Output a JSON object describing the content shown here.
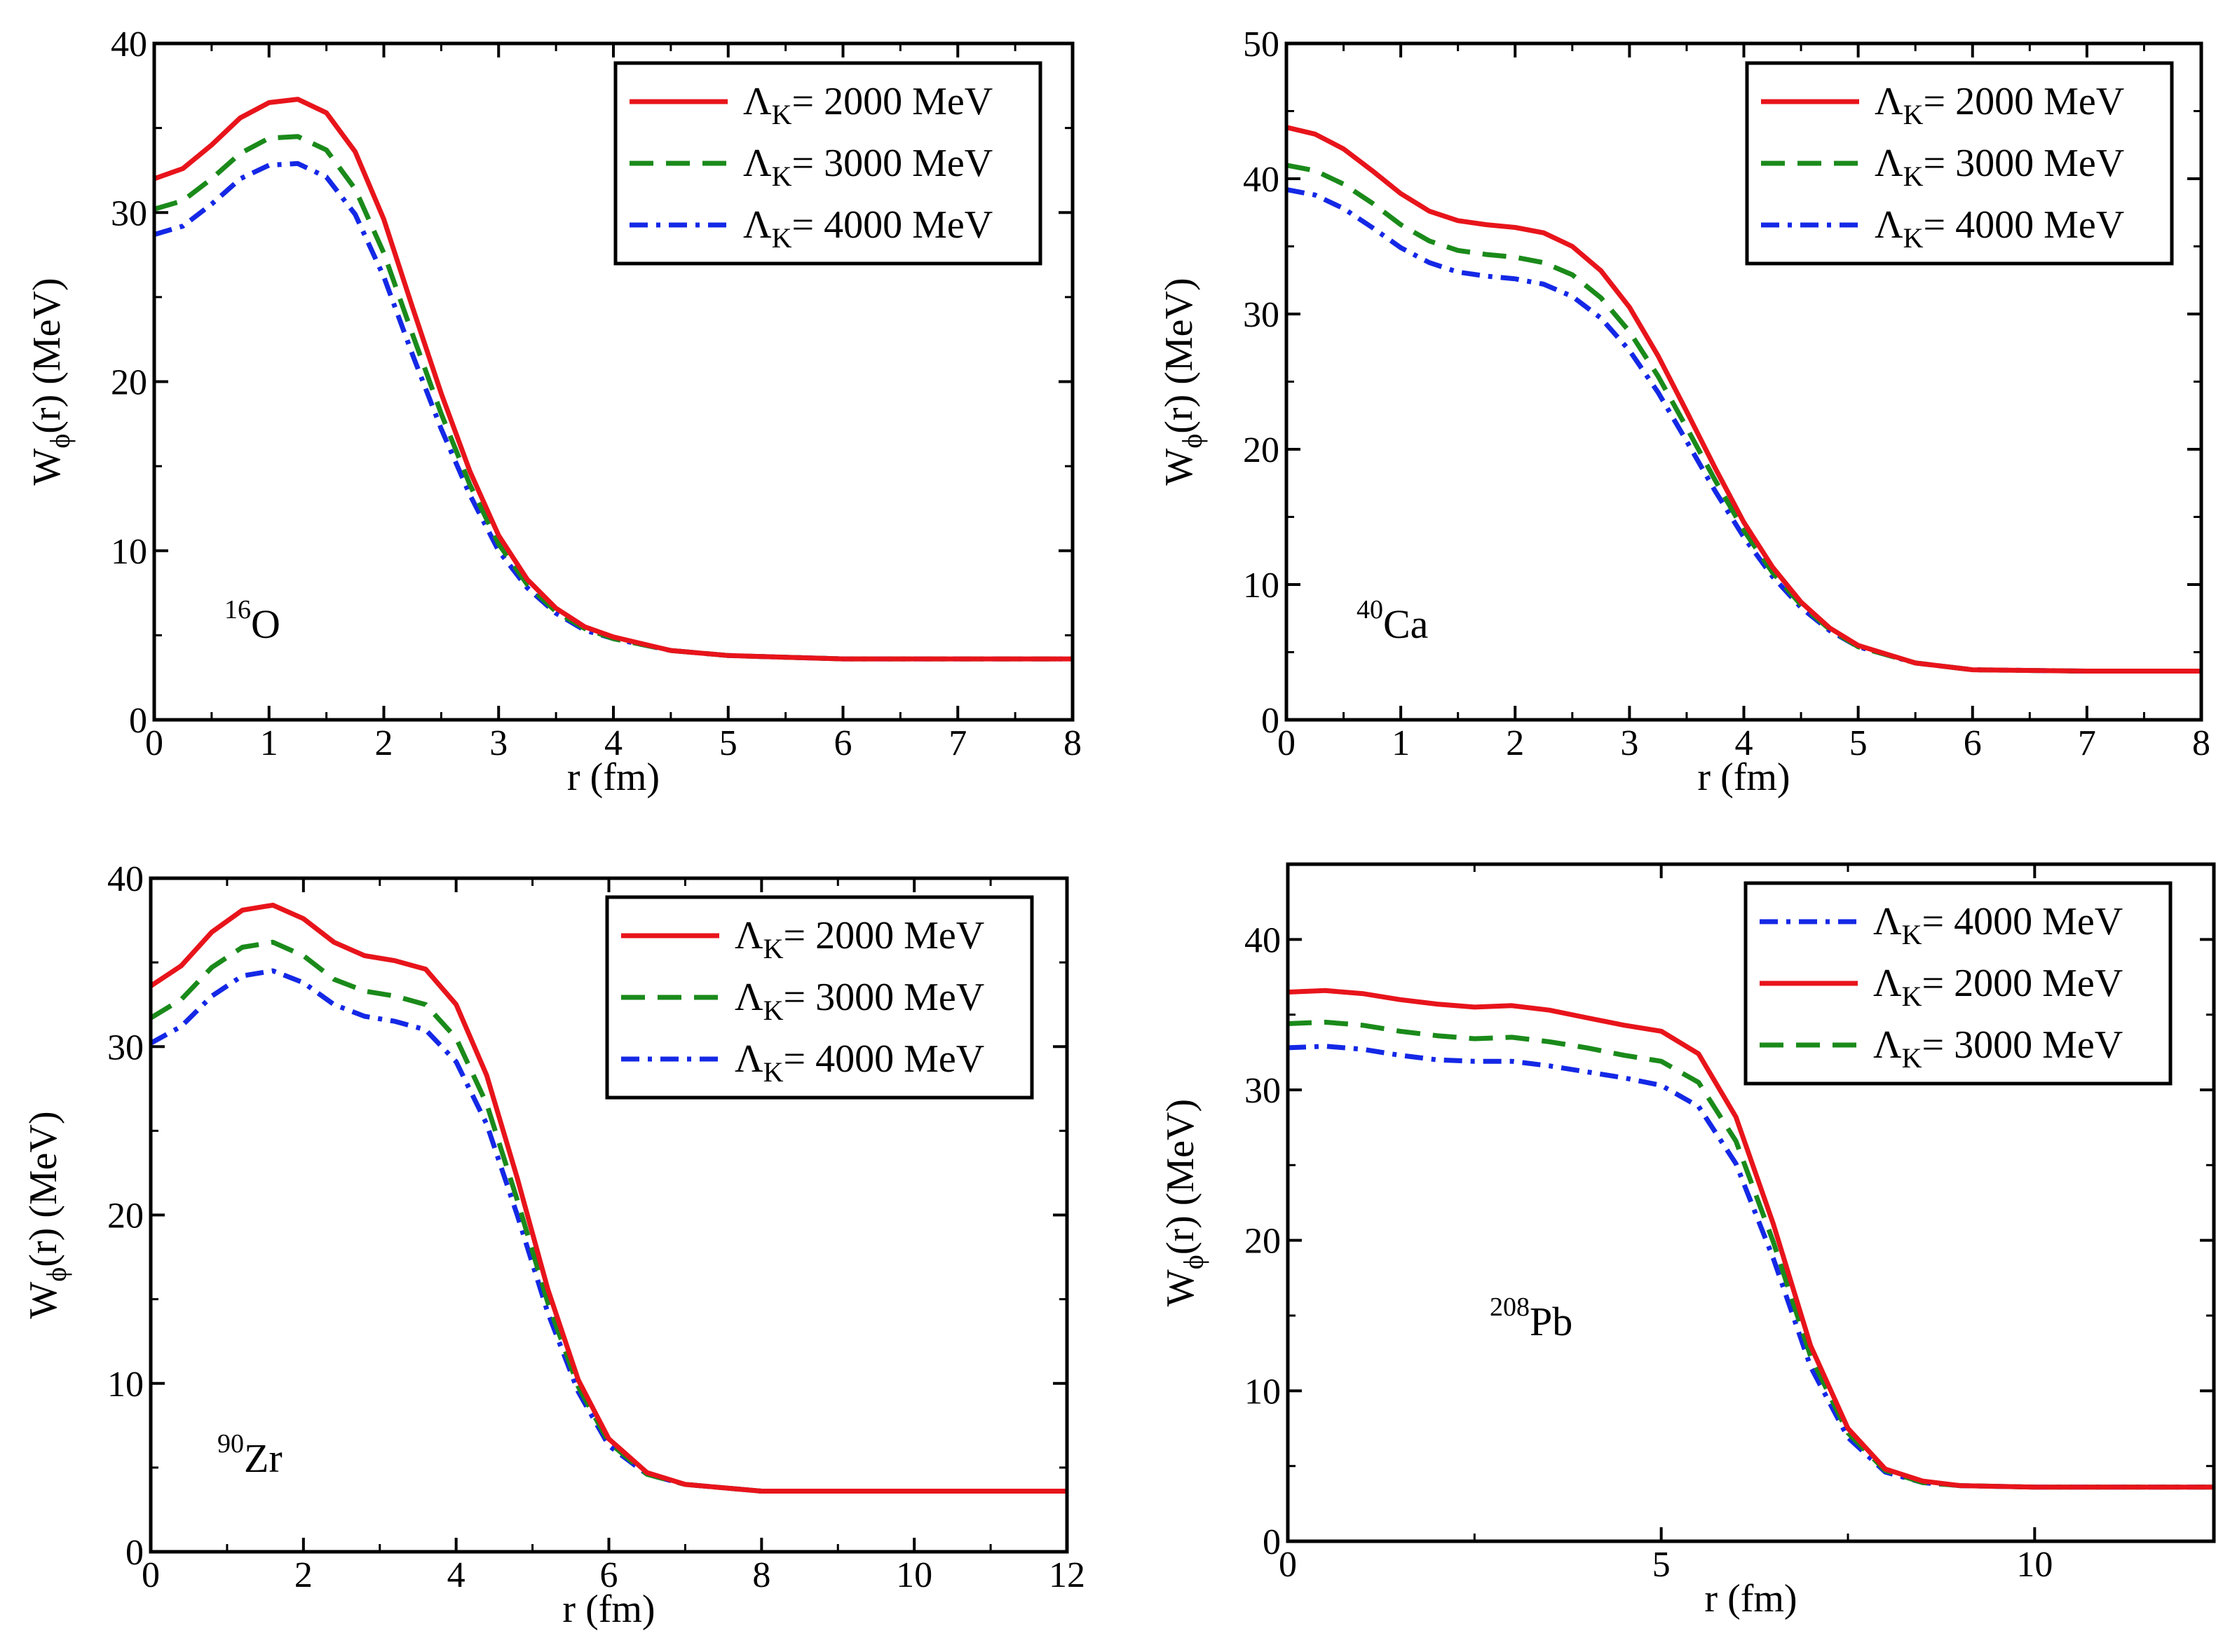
{
  "chart_data": [
    {
      "type": "line",
      "panel": "top-left",
      "nucleus": {
        "mass": "16",
        "symbol": "O"
      },
      "xlabel": "r (fm)",
      "ylabel": {
        "main": "W",
        "sub": "ϕ",
        "rest": "(r) (MeV)"
      },
      "xlim": [
        0,
        8
      ],
      "ylim": [
        0,
        40
      ],
      "xticks": [
        0,
        1,
        2,
        3,
        4,
        5,
        6,
        7,
        8
      ],
      "yticks": [
        0,
        10,
        20,
        30,
        40
      ],
      "legend_position": "top-right",
      "series": [
        {
          "name": "Λ_K= 2000 MeV",
          "label_main": "Λ",
          "label_sub": "K",
          "label_rest": "= 2000 MeV",
          "color": "#e8141b",
          "dash": "solid",
          "x": [
            0,
            0.25,
            0.5,
            0.75,
            1.0,
            1.25,
            1.5,
            1.75,
            2.0,
            2.25,
            2.5,
            2.75,
            3.0,
            3.25,
            3.5,
            3.75,
            4.0,
            4.5,
            5.0,
            5.5,
            6.0,
            7.0,
            8.0
          ],
          "y": [
            32.0,
            32.6,
            34.0,
            35.6,
            36.5,
            36.7,
            35.9,
            33.6,
            29.6,
            24.4,
            19.3,
            14.7,
            10.9,
            8.3,
            6.6,
            5.5,
            4.9,
            4.1,
            3.8,
            3.7,
            3.6,
            3.6,
            3.6
          ]
        },
        {
          "name": "Λ_K= 3000 MeV",
          "label_main": "Λ",
          "label_sub": "K",
          "label_rest": "= 3000 MeV",
          "color": "#1a8a1a",
          "dash": "dashed",
          "x": [
            0,
            0.25,
            0.5,
            0.75,
            1.0,
            1.25,
            1.5,
            1.75,
            2.0,
            2.25,
            2.5,
            2.75,
            3.0,
            3.25,
            3.5,
            3.75,
            4.0,
            4.5,
            5.0,
            5.5,
            6.0,
            7.0,
            8.0
          ],
          "y": [
            30.2,
            30.7,
            32.0,
            33.5,
            34.4,
            34.5,
            33.7,
            31.4,
            27.6,
            22.8,
            18.1,
            13.9,
            10.4,
            8.0,
            6.4,
            5.4,
            4.8,
            4.1,
            3.8,
            3.7,
            3.6,
            3.6,
            3.6
          ]
        },
        {
          "name": "Λ_K= 4000 MeV",
          "label_main": "Λ",
          "label_sub": "K",
          "label_rest": "= 4000 MeV",
          "color": "#1428e6",
          "dash": "dashdot",
          "x": [
            0,
            0.25,
            0.5,
            0.75,
            1.0,
            1.25,
            1.5,
            1.75,
            2.0,
            2.25,
            2.5,
            2.75,
            3.0,
            3.25,
            3.5,
            3.75,
            4.0,
            4.5,
            5.0,
            5.5,
            6.0,
            7.0,
            8.0
          ],
          "y": [
            28.7,
            29.2,
            30.5,
            32.0,
            32.8,
            32.9,
            32.1,
            29.9,
            26.2,
            21.6,
            17.2,
            13.3,
            10.0,
            7.8,
            6.3,
            5.3,
            4.8,
            4.1,
            3.8,
            3.7,
            3.6,
            3.6,
            3.6
          ]
        }
      ]
    },
    {
      "type": "line",
      "panel": "top-right",
      "nucleus": {
        "mass": "40",
        "symbol": "Ca"
      },
      "xlabel": "r (fm)",
      "ylabel": {
        "main": "W",
        "sub": "ϕ",
        "rest": "(r) (MeV)"
      },
      "xlim": [
        0,
        8
      ],
      "ylim": [
        0,
        50
      ],
      "xticks": [
        0,
        1,
        2,
        3,
        4,
        5,
        6,
        7,
        8
      ],
      "yticks": [
        0,
        10,
        20,
        30,
        40,
        50
      ],
      "legend_position": "top-right",
      "series": [
        {
          "name": "Λ_K= 2000 MeV",
          "label_main": "Λ",
          "label_sub": "K",
          "label_rest": "= 2000 MeV",
          "color": "#e8141b",
          "dash": "solid",
          "x": [
            0,
            0.25,
            0.5,
            0.75,
            1.0,
            1.25,
            1.5,
            1.75,
            2.0,
            2.25,
            2.5,
            2.75,
            3.0,
            3.25,
            3.5,
            3.75,
            4.0,
            4.25,
            4.5,
            4.75,
            5.0,
            5.5,
            6.0,
            7.0,
            8.0
          ],
          "y": [
            43.8,
            43.3,
            42.2,
            40.6,
            38.9,
            37.6,
            36.9,
            36.6,
            36.4,
            36.0,
            35.0,
            33.2,
            30.5,
            26.9,
            22.8,
            18.6,
            14.6,
            11.3,
            8.7,
            6.8,
            5.5,
            4.2,
            3.7,
            3.6,
            3.6
          ]
        },
        {
          "name": "Λ_K= 3000 MeV",
          "label_main": "Λ",
          "label_sub": "K",
          "label_rest": "= 3000 MeV",
          "color": "#1a8a1a",
          "dash": "dashed",
          "x": [
            0,
            0.25,
            0.5,
            0.75,
            1.0,
            1.25,
            1.5,
            1.75,
            2.0,
            2.25,
            2.5,
            2.75,
            3.0,
            3.25,
            3.5,
            3.75,
            4.0,
            4.25,
            4.5,
            4.75,
            5.0,
            5.5,
            6.0,
            7.0,
            8.0
          ],
          "y": [
            41.0,
            40.6,
            39.6,
            38.2,
            36.6,
            35.4,
            34.7,
            34.4,
            34.2,
            33.8,
            32.9,
            31.2,
            28.7,
            25.4,
            21.6,
            17.7,
            14.0,
            10.9,
            8.5,
            6.7,
            5.4,
            4.2,
            3.7,
            3.6,
            3.6
          ]
        },
        {
          "name": "Λ_K= 4000 MeV",
          "label_main": "Λ",
          "label_sub": "K",
          "label_rest": "= 4000 MeV",
          "color": "#1428e6",
          "dash": "dashdot",
          "x": [
            0,
            0.25,
            0.5,
            0.75,
            1.0,
            1.25,
            1.5,
            1.75,
            2.0,
            2.25,
            2.5,
            2.75,
            3.0,
            3.25,
            3.5,
            3.75,
            4.0,
            4.25,
            4.5,
            4.75,
            5.0,
            5.5,
            6.0,
            7.0,
            8.0
          ],
          "y": [
            39.2,
            38.8,
            37.8,
            36.4,
            34.9,
            33.8,
            33.1,
            32.8,
            32.6,
            32.2,
            31.3,
            29.7,
            27.3,
            24.2,
            20.6,
            16.9,
            13.5,
            10.6,
            8.3,
            6.6,
            5.4,
            4.2,
            3.7,
            3.6,
            3.6
          ]
        }
      ]
    },
    {
      "type": "line",
      "panel": "bottom-left",
      "nucleus": {
        "mass": "90",
        "symbol": "Zr"
      },
      "xlabel": "r (fm)",
      "ylabel": {
        "main": "W",
        "sub": "ϕ",
        "rest": "(r) (MeV)"
      },
      "xlim": [
        0,
        12
      ],
      "ylim": [
        0,
        40
      ],
      "xticks": [
        0,
        2,
        4,
        6,
        8,
        10,
        12
      ],
      "yticks": [
        0,
        10,
        20,
        30,
        40
      ],
      "legend_position": "top-right",
      "series": [
        {
          "name": "Λ_K= 2000 MeV",
          "label_main": "Λ",
          "label_sub": "K",
          "label_rest": "= 2000 MeV",
          "color": "#e8141b",
          "dash": "solid",
          "x": [
            0,
            0.4,
            0.8,
            1.2,
            1.6,
            2.0,
            2.4,
            2.8,
            3.2,
            3.6,
            4.0,
            4.4,
            4.8,
            5.2,
            5.6,
            6.0,
            6.5,
            7.0,
            8.0,
            9.0,
            10.0,
            11.0,
            12.0
          ],
          "y": [
            33.6,
            34.8,
            36.8,
            38.1,
            38.4,
            37.6,
            36.2,
            35.4,
            35.1,
            34.6,
            32.5,
            28.3,
            22.2,
            15.6,
            10.2,
            6.7,
            4.7,
            4.0,
            3.6,
            3.6,
            3.6,
            3.6,
            3.6
          ]
        },
        {
          "name": "Λ_K= 3000 MeV",
          "label_main": "Λ",
          "label_sub": "K",
          "label_rest": "= 3000 MeV",
          "color": "#1a8a1a",
          "dash": "dashed",
          "x": [
            0,
            0.4,
            0.8,
            1.2,
            1.6,
            2.0,
            2.4,
            2.8,
            3.2,
            3.6,
            4.0,
            4.4,
            4.8,
            5.2,
            5.6,
            6.0,
            6.5,
            7.0,
            8.0,
            9.0,
            10.0,
            11.0,
            12.0
          ],
          "y": [
            31.7,
            32.8,
            34.7,
            35.9,
            36.2,
            35.4,
            34.0,
            33.3,
            33.0,
            32.5,
            30.5,
            26.6,
            20.9,
            14.8,
            9.8,
            6.5,
            4.6,
            4.0,
            3.6,
            3.6,
            3.6,
            3.6,
            3.6
          ]
        },
        {
          "name": "Λ_K= 4000 MeV",
          "label_main": "Λ",
          "label_sub": "K",
          "label_rest": "= 4000 MeV",
          "color": "#1428e6",
          "dash": "dashdot",
          "x": [
            0,
            0.4,
            0.8,
            1.2,
            1.6,
            2.0,
            2.4,
            2.8,
            3.2,
            3.6,
            4.0,
            4.4,
            4.8,
            5.2,
            5.6,
            6.0,
            6.5,
            7.0,
            8.0,
            9.0,
            10.0,
            11.0,
            12.0
          ],
          "y": [
            30.2,
            31.2,
            33.0,
            34.2,
            34.5,
            33.8,
            32.5,
            31.8,
            31.5,
            31.0,
            29.1,
            25.4,
            20.0,
            14.2,
            9.5,
            6.3,
            4.6,
            4.0,
            3.6,
            3.6,
            3.6,
            3.6,
            3.6
          ]
        }
      ]
    },
    {
      "type": "line",
      "panel": "bottom-right",
      "nucleus": {
        "mass": "208",
        "symbol": "Pb"
      },
      "xlabel": "r (fm)",
      "ylabel": {
        "main": "W",
        "sub": "ϕ",
        "rest": "(r) (MeV)"
      },
      "xlim": [
        0,
        12.4
      ],
      "ylim": [
        0,
        45
      ],
      "xticks": [
        0,
        5,
        10
      ],
      "yticks": [
        0,
        10,
        20,
        30,
        40
      ],
      "legend_position": "top-right",
      "series": [
        {
          "name": "Λ_K= 4000 MeV",
          "label_main": "Λ",
          "label_sub": "K",
          "label_rest": "= 4000 MeV",
          "color": "#1428e6",
          "dash": "dashdot",
          "x": [
            0,
            0.5,
            1.0,
            1.5,
            2.0,
            2.5,
            3.0,
            3.5,
            4.0,
            4.5,
            5.0,
            5.5,
            6.0,
            6.5,
            7.0,
            7.5,
            8.0,
            8.5,
            9.0,
            10.0,
            11.0,
            12.4
          ],
          "y": [
            32.8,
            32.9,
            32.7,
            32.3,
            32.0,
            31.9,
            31.9,
            31.6,
            31.2,
            30.8,
            30.3,
            28.9,
            25.1,
            18.8,
            11.6,
            6.9,
            4.6,
            3.9,
            3.7,
            3.6,
            3.6,
            3.6
          ]
        },
        {
          "name": "Λ_K= 2000 MeV",
          "label_main": "Λ",
          "label_sub": "K",
          "label_rest": "= 2000 MeV",
          "color": "#e8141b",
          "dash": "solid",
          "x": [
            0,
            0.5,
            1.0,
            1.5,
            2.0,
            2.5,
            3.0,
            3.5,
            4.0,
            4.5,
            5.0,
            5.5,
            6.0,
            6.5,
            7.0,
            7.5,
            8.0,
            8.5,
            9.0,
            10.0,
            11.0,
            12.4
          ],
          "y": [
            36.5,
            36.6,
            36.4,
            36.0,
            35.7,
            35.5,
            35.6,
            35.3,
            34.8,
            34.3,
            33.9,
            32.4,
            28.2,
            21.1,
            13.0,
            7.5,
            4.8,
            4.0,
            3.7,
            3.6,
            3.6,
            3.6
          ]
        },
        {
          "name": "Λ_K= 3000 MeV",
          "label_main": "Λ",
          "label_sub": "K",
          "label_rest": "= 3000 MeV",
          "color": "#1a8a1a",
          "dash": "dashed",
          "x": [
            0,
            0.5,
            1.0,
            1.5,
            2.0,
            2.5,
            3.0,
            3.5,
            4.0,
            4.5,
            5.0,
            5.5,
            6.0,
            6.5,
            7.0,
            7.5,
            8.0,
            8.5,
            9.0,
            10.0,
            11.0,
            12.4
          ],
          "y": [
            34.4,
            34.5,
            34.3,
            33.9,
            33.6,
            33.4,
            33.5,
            33.2,
            32.8,
            32.3,
            31.9,
            30.5,
            26.6,
            19.9,
            12.3,
            7.2,
            4.7,
            3.9,
            3.7,
            3.6,
            3.6,
            3.6
          ]
        }
      ]
    }
  ]
}
